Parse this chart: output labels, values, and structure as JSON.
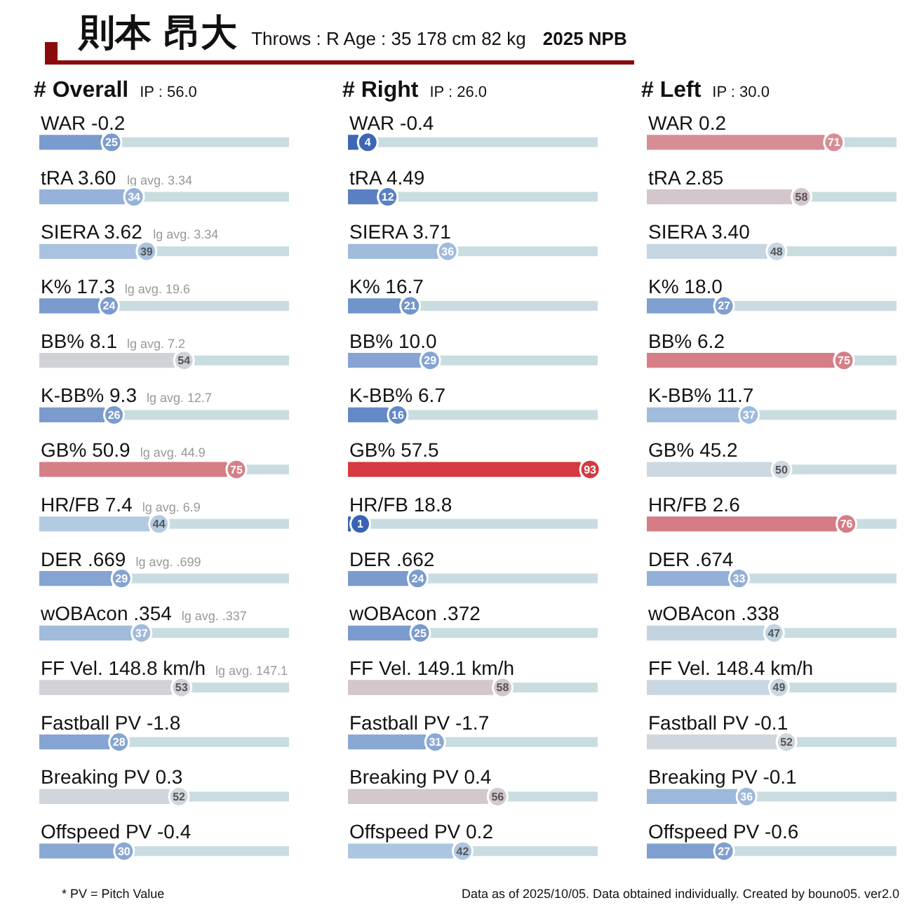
{
  "chart_data": [
    {
      "type": "other",
      "title": "則本 昂大",
      "subtitle": "Throws : R  Age : 35  178 cm 82 kg",
      "annotations": [
        "2025 NPB"
      ]
    },
    {
      "type": "bar",
      "orientation": "horizontal",
      "title": "# Overall",
      "subtitle": "IP : 56.0",
      "xlim": [
        0,
        100
      ],
      "tick_labels": false,
      "grid": false,
      "legend": false,
      "data_labels": true,
      "categories": [
        "WAR -0.2",
        "tRA 3.60  lg avg. 3.34",
        "SIERA 3.62  lg avg. 3.34",
        "K% 17.3  lg avg. 19.6",
        "BB% 8.1  lg avg. 7.2",
        "K-BB% 9.3  lg avg. 12.7",
        "GB% 50.9  lg avg. 44.9",
        "HR/FB 7.4  lg avg. 6.9",
        "DER .669  lg avg. .699",
        "wOBAcon .354  lg avg. .337",
        "FF Vel. 148.8 km/h  lg avg. 147.1",
        "Fastball PV -1.8",
        "Breaking PV 0.3",
        "Offspeed PV -0.4"
      ],
      "values": [
        25,
        34,
        39,
        24,
        54,
        26,
        75,
        44,
        29,
        37,
        53,
        28,
        52,
        30
      ],
      "colors": [
        "#7b9bcf",
        "#96b2da",
        "#a9c2df",
        "#7b9bcf",
        "#d0d2d8",
        "#7b9bcf",
        "#d57e86",
        "#b3cbe0",
        "#85a4d3",
        "#a0bbdc",
        "#d0d2d8",
        "#85a4d3",
        "#cfd6dc",
        "#8aa8d4"
      ],
      "annotations": [
        "* PV = Pitch Value"
      ]
    },
    {
      "type": "bar",
      "orientation": "horizontal",
      "title": "# Right",
      "subtitle": "IP : 26.0",
      "xlim": [
        0,
        100
      ],
      "tick_labels": false,
      "grid": false,
      "legend": false,
      "data_labels": true,
      "categories": [
        "WAR -0.4",
        "tRA 4.49",
        "SIERA 3.71",
        "K% 16.7",
        "BB% 10.0",
        "K-BB% 6.7",
        "GB% 57.5",
        "HR/FB 18.8",
        "DER .662",
        "wOBAcon .372",
        "FF Vel. 149.1 km/h",
        "Fastball PV -1.7",
        "Breaking PV 0.4",
        "Offspeed PV 0.2"
      ],
      "values": [
        4,
        12,
        36,
        21,
        29,
        16,
        93,
        1,
        24,
        25,
        58,
        31,
        56,
        42
      ],
      "colors": [
        "#3e67b5",
        "#5a80c3",
        "#a0bbdc",
        "#7095cb",
        "#85a4d3",
        "#6389c7",
        "#d43a3f",
        "#3a63b3",
        "#7b9bcf",
        "#7b9bcf",
        "#d3c6cd",
        "#8aa8d4",
        "#d3c8ce",
        "#adc6e0"
      ]
    },
    {
      "type": "bar",
      "orientation": "horizontal",
      "title": "# Left",
      "subtitle": "IP : 30.0",
      "xlim": [
        0,
        100
      ],
      "tick_labels": false,
      "grid": false,
      "legend": false,
      "data_labels": true,
      "categories": [
        "WAR 0.2",
        "tRA 2.85",
        "SIERA 3.40",
        "K% 18.0",
        "BB% 6.2",
        "K-BB% 11.7",
        "GB% 45.2",
        "HR/FB 2.6",
        "DER .674",
        "wOBAcon .338",
        "FF Vel. 148.4 km/h",
        "Fastball PV -0.1",
        "Breaking PV -0.1",
        "Offspeed PV -0.6"
      ],
      "values": [
        71,
        58,
        48,
        27,
        75,
        37,
        50,
        76,
        33,
        47,
        49,
        52,
        36,
        27
      ],
      "colors": [
        "#d88d94",
        "#d3c6cd",
        "#c6d6e2",
        "#7f9fd0",
        "#d57e86",
        "#a0bbdc",
        "#ccd9e2",
        "#d57c84",
        "#93b0d8",
        "#c2d4e1",
        "#c9d7e2",
        "#cfd6dc",
        "#9cb8db",
        "#7f9fd0"
      ],
      "annotations": [
        "Data as of 2025/10/05. Data obtained individually. Created by bouno05.  ver2.0"
      ]
    }
  ]
}
